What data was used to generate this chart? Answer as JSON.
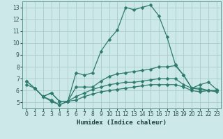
{
  "xlabel": "Humidex (Indice chaleur)",
  "background_color": "#cce8e8",
  "grid_color": "#aacccc",
  "line_color": "#2e7b6e",
  "spine_color": "#5a9a8a",
  "xlim": [
    -0.5,
    23.5
  ],
  "ylim": [
    4.5,
    13.5
  ],
  "xticks": [
    0,
    1,
    2,
    3,
    4,
    5,
    6,
    7,
    8,
    9,
    10,
    11,
    12,
    13,
    14,
    15,
    16,
    17,
    18,
    19,
    20,
    21,
    22,
    23
  ],
  "yticks": [
    5,
    6,
    7,
    8,
    9,
    10,
    11,
    12,
    13
  ],
  "line1_x": [
    0,
    1,
    2,
    3,
    4,
    5,
    6,
    7,
    8,
    9,
    10,
    11,
    12,
    13,
    14,
    15,
    16,
    17,
    18,
    19,
    20,
    21,
    22,
    23
  ],
  "line1_y": [
    6.8,
    6.2,
    5.5,
    5.1,
    4.8,
    5.1,
    7.5,
    7.3,
    7.5,
    9.3,
    10.3,
    11.1,
    13.0,
    12.8,
    13.0,
    13.2,
    12.3,
    10.5,
    8.2,
    7.3,
    6.2,
    6.5,
    6.7,
    6.1
  ],
  "line2_x": [
    0,
    1,
    2,
    3,
    4,
    5,
    6,
    7,
    8,
    9,
    10,
    11,
    12,
    13,
    14,
    15,
    16,
    17,
    18,
    19,
    20,
    21,
    22,
    23
  ],
  "line2_y": [
    6.8,
    6.2,
    5.5,
    5.8,
    5.1,
    5.1,
    6.3,
    6.3,
    6.3,
    6.8,
    7.2,
    7.4,
    7.5,
    7.6,
    7.7,
    7.8,
    8.0,
    8.0,
    8.1,
    7.3,
    6.2,
    6.2,
    6.0,
    6.0
  ],
  "line3_x": [
    0,
    1,
    2,
    3,
    4,
    5,
    6,
    7,
    8,
    9,
    10,
    11,
    12,
    13,
    14,
    15,
    16,
    17,
    18,
    19,
    20,
    21,
    22,
    23
  ],
  "line3_y": [
    6.5,
    6.2,
    5.5,
    5.8,
    5.1,
    5.1,
    5.5,
    5.8,
    6.1,
    6.3,
    6.5,
    6.6,
    6.7,
    6.7,
    6.8,
    6.9,
    7.0,
    7.0,
    7.0,
    6.5,
    6.2,
    6.1,
    6.0,
    6.0
  ],
  "line4_x": [
    2,
    3,
    4,
    5,
    6,
    7,
    8,
    9,
    10,
    11,
    12,
    13,
    14,
    15,
    16,
    17,
    18,
    19,
    20,
    21,
    22,
    23
  ],
  "line4_y": [
    5.5,
    5.2,
    4.8,
    5.1,
    5.2,
    5.5,
    5.7,
    5.9,
    6.0,
    6.1,
    6.2,
    6.3,
    6.4,
    6.5,
    6.5,
    6.5,
    6.5,
    6.3,
    6.0,
    5.9,
    6.0,
    5.9
  ]
}
